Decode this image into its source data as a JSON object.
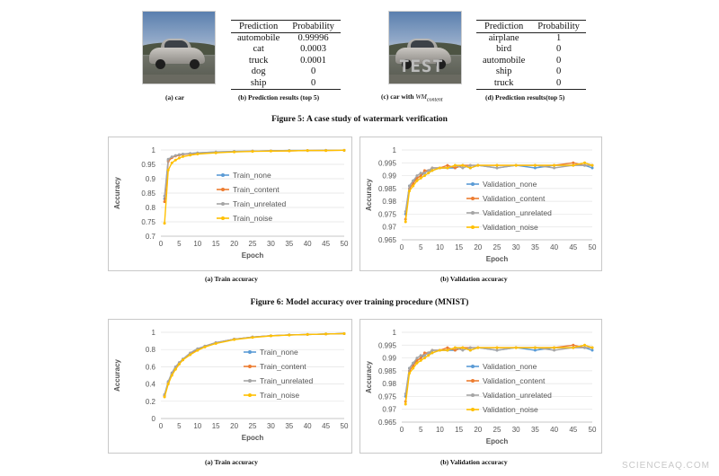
{
  "figure5": {
    "caption": "Figure 5: A case study of watermark verification",
    "sub_a": "(a) car",
    "sub_b": "(b) Prediction results (top 5)",
    "sub_c_prefix": "(c) car with ",
    "sub_c_math": "WM",
    "sub_c_sub": "content",
    "sub_d": "(d) Prediction results(top 5)",
    "watermark_text": "TEST",
    "table_headers": [
      "Prediction",
      "Probability"
    ],
    "table_b": [
      [
        "automobile",
        "0.99996"
      ],
      [
        "cat",
        "0.0003"
      ],
      [
        "truck",
        "0.0001"
      ],
      [
        "dog",
        "0"
      ],
      [
        "ship",
        "0"
      ]
    ],
    "table_d": [
      [
        "airplane",
        "1"
      ],
      [
        "bird",
        "0"
      ],
      [
        "automobile",
        "0"
      ],
      [
        "ship",
        "0"
      ],
      [
        "truck",
        "0"
      ]
    ]
  },
  "figure6": {
    "caption": "Figure 6: Model accuracy over training procedure (MNIST)",
    "sub_a": "(a) Train accuracy",
    "sub_b": "(b) Validation accuracy"
  },
  "figure7": {
    "sub_a": "(a) Train accuracy",
    "sub_b": "(b) Validation accuracy"
  },
  "site_watermark": "SCIENCEAQ.COM",
  "colors": {
    "none": "#5b9bd5",
    "content": "#ed7d31",
    "unrelated": "#a5a5a5",
    "noise": "#ffc000"
  },
  "chart_data": [
    {
      "id": "c1",
      "type": "line",
      "title": "",
      "xlabel": "Epoch",
      "ylabel": "Accuracy",
      "xlim": [
        0,
        50
      ],
      "ylim": [
        0.7,
        1
      ],
      "xticks": [
        0,
        5,
        10,
        15,
        20,
        25,
        30,
        35,
        40,
        45,
        50
      ],
      "yticks": [
        0.7,
        0.75,
        0.8,
        0.85,
        0.9,
        0.95,
        1
      ],
      "ytick_labels": [
        "0.7",
        "0.75",
        "0.8",
        "0.85",
        "0.9",
        "0.95",
        "1"
      ],
      "legend_position": "center",
      "series": [
        {
          "name": "Train_none",
          "key": "none",
          "x": [
            1,
            2,
            3,
            4,
            5,
            6,
            8,
            10,
            15,
            20,
            25,
            30,
            35,
            40,
            45,
            50
          ],
          "values": [
            0.83,
            0.965,
            0.975,
            0.98,
            0.983,
            0.985,
            0.988,
            0.99,
            0.993,
            0.995,
            0.996,
            0.997,
            0.998,
            0.998,
            0.999,
            0.999
          ]
        },
        {
          "name": "Train_content",
          "key": "content",
          "x": [
            1,
            2,
            3,
            4,
            5,
            6,
            8,
            10,
            15,
            20,
            25,
            30,
            35,
            40,
            45,
            50
          ],
          "values": [
            0.82,
            0.96,
            0.973,
            0.979,
            0.982,
            0.984,
            0.987,
            0.989,
            0.992,
            0.994,
            0.996,
            0.997,
            0.997,
            0.998,
            0.998,
            0.999
          ]
        },
        {
          "name": "Train_unrelated",
          "key": "unrelated",
          "x": [
            1,
            2,
            3,
            4,
            5,
            6,
            8,
            10,
            15,
            20,
            25,
            30,
            35,
            40,
            45,
            50
          ],
          "values": [
            0.84,
            0.968,
            0.976,
            0.981,
            0.984,
            0.986,
            0.988,
            0.99,
            0.993,
            0.995,
            0.996,
            0.997,
            0.998,
            0.998,
            0.999,
            0.999
          ]
        },
        {
          "name": "Train_noise",
          "key": "noise",
          "x": [
            1,
            2,
            3,
            4,
            5,
            6,
            8,
            10,
            15,
            20,
            25,
            30,
            35,
            40,
            45,
            50
          ],
          "values": [
            0.745,
            0.93,
            0.955,
            0.965,
            0.972,
            0.977,
            0.982,
            0.986,
            0.99,
            0.993,
            0.995,
            0.996,
            0.997,
            0.998,
            0.998,
            0.999
          ]
        }
      ]
    },
    {
      "id": "c2",
      "type": "line",
      "title": "",
      "xlabel": "Epoch",
      "ylabel": "Accuracy",
      "xlim": [
        0,
        50
      ],
      "ylim": [
        0.965,
        1
      ],
      "xticks": [
        0,
        5,
        10,
        15,
        20,
        25,
        30,
        35,
        40,
        45,
        50
      ],
      "yticks": [
        0.965,
        0.97,
        0.975,
        0.98,
        0.985,
        0.99,
        0.995,
        1
      ],
      "ytick_labels": [
        "0.965",
        "0.97",
        "0.975",
        "0.98",
        "0.985",
        "0.99",
        "0.995",
        "1"
      ],
      "legend_position": "center",
      "series": [
        {
          "name": "Validation_none",
          "key": "none",
          "x": [
            1,
            2,
            3,
            4,
            5,
            6,
            7,
            8,
            10,
            12,
            14,
            16,
            18,
            20,
            25,
            30,
            35,
            40,
            45,
            48,
            50
          ],
          "values": [
            0.975,
            0.986,
            0.988,
            0.989,
            0.99,
            0.991,
            0.992,
            0.992,
            0.993,
            0.993,
            0.993,
            0.994,
            0.993,
            0.994,
            0.993,
            0.994,
            0.993,
            0.994,
            0.994,
            0.994,
            0.993
          ]
        },
        {
          "name": "Validation_content",
          "key": "content",
          "x": [
            1,
            2,
            3,
            4,
            5,
            6,
            7,
            8,
            10,
            12,
            14,
            16,
            18,
            20,
            25,
            30,
            35,
            40,
            45,
            48,
            50
          ],
          "values": [
            0.973,
            0.985,
            0.987,
            0.989,
            0.99,
            0.992,
            0.992,
            0.993,
            0.993,
            0.994,
            0.993,
            0.994,
            0.994,
            0.994,
            0.994,
            0.994,
            0.994,
            0.994,
            0.995,
            0.994,
            0.994
          ]
        },
        {
          "name": "Validation_unrelated",
          "key": "unrelated",
          "x": [
            1,
            2,
            3,
            4,
            5,
            6,
            7,
            8,
            10,
            12,
            14,
            16,
            18,
            20,
            25,
            30,
            35,
            40,
            45,
            48,
            50
          ],
          "values": [
            0.976,
            0.986,
            0.988,
            0.99,
            0.991,
            0.991,
            0.992,
            0.993,
            0.993,
            0.993,
            0.994,
            0.993,
            0.994,
            0.994,
            0.993,
            0.994,
            0.994,
            0.993,
            0.994,
            0.994,
            0.994
          ]
        },
        {
          "name": "Validation_noise",
          "key": "noise",
          "x": [
            1,
            2,
            3,
            4,
            5,
            6,
            7,
            8,
            10,
            12,
            14,
            16,
            18,
            20,
            25,
            30,
            35,
            40,
            45,
            48,
            50
          ],
          "values": [
            0.972,
            0.984,
            0.986,
            0.988,
            0.989,
            0.99,
            0.991,
            0.992,
            0.993,
            0.993,
            0.994,
            0.994,
            0.993,
            0.994,
            0.994,
            0.994,
            0.994,
            0.994,
            0.994,
            0.995,
            0.994
          ]
        }
      ]
    },
    {
      "id": "c3",
      "type": "line",
      "title": "",
      "xlabel": "Epoch",
      "ylabel": "Accuracy",
      "xlim": [
        0,
        50
      ],
      "ylim": [
        0,
        1
      ],
      "xticks": [
        0,
        5,
        10,
        15,
        20,
        25,
        30,
        35,
        40,
        45,
        50
      ],
      "yticks": [
        0,
        0.2,
        0.4,
        0.6,
        0.8,
        1
      ],
      "ytick_labels": [
        "0",
        "0.2",
        "0.4",
        "0.6",
        "0.8",
        "1"
      ],
      "legend_position": "center-right",
      "series": [
        {
          "name": "Train_none",
          "key": "none",
          "x": [
            1,
            2,
            3,
            4,
            5,
            6,
            8,
            10,
            12,
            15,
            20,
            25,
            30,
            35,
            40,
            45,
            50
          ],
          "values": [
            0.27,
            0.42,
            0.52,
            0.59,
            0.64,
            0.69,
            0.75,
            0.8,
            0.84,
            0.88,
            0.92,
            0.945,
            0.96,
            0.97,
            0.975,
            0.98,
            0.985
          ]
        },
        {
          "name": "Train_content",
          "key": "content",
          "x": [
            1,
            2,
            3,
            4,
            5,
            6,
            8,
            10,
            12,
            15,
            20,
            25,
            30,
            35,
            40,
            45,
            50
          ],
          "values": [
            0.26,
            0.41,
            0.51,
            0.58,
            0.64,
            0.68,
            0.75,
            0.8,
            0.84,
            0.88,
            0.92,
            0.945,
            0.96,
            0.97,
            0.975,
            0.98,
            0.985
          ]
        },
        {
          "name": "Train_unrelated",
          "key": "unrelated",
          "x": [
            1,
            2,
            3,
            4,
            5,
            6,
            8,
            10,
            12,
            15,
            20,
            25,
            30,
            35,
            40,
            45,
            50
          ],
          "values": [
            0.28,
            0.43,
            0.53,
            0.6,
            0.65,
            0.69,
            0.76,
            0.81,
            0.84,
            0.88,
            0.92,
            0.945,
            0.96,
            0.97,
            0.975,
            0.98,
            0.985
          ]
        },
        {
          "name": "Train_noise",
          "key": "noise",
          "x": [
            1,
            2,
            3,
            4,
            5,
            6,
            8,
            10,
            12,
            15,
            20,
            25,
            30,
            35,
            40,
            45,
            50
          ],
          "values": [
            0.25,
            0.4,
            0.5,
            0.57,
            0.63,
            0.68,
            0.74,
            0.79,
            0.83,
            0.87,
            0.915,
            0.94,
            0.958,
            0.968,
            0.975,
            0.98,
            0.985
          ]
        }
      ]
    },
    {
      "id": "c4",
      "type": "line",
      "title": "",
      "xlabel": "Epoch",
      "ylabel": "Accuracy",
      "xlim": [
        0,
        50
      ],
      "ylim": [
        0.965,
        1
      ],
      "xticks": [
        0,
        5,
        10,
        15,
        20,
        25,
        30,
        35,
        40,
        45,
        50
      ],
      "yticks": [
        0.965,
        0.97,
        0.975,
        0.98,
        0.985,
        0.99,
        0.995,
        1
      ],
      "ytick_labels": [
        "0.965",
        "0.97",
        "0.975",
        "0.98",
        "0.985",
        "0.99",
        "0.995",
        "1"
      ],
      "legend_position": "center",
      "series": [
        {
          "name": "Validation_none",
          "key": "none",
          "x": [
            1,
            2,
            3,
            4,
            5,
            6,
            7,
            8,
            10,
            12,
            14,
            16,
            18,
            20,
            25,
            30,
            35,
            40,
            45,
            48,
            50
          ],
          "values": [
            0.975,
            0.986,
            0.988,
            0.989,
            0.99,
            0.991,
            0.992,
            0.992,
            0.993,
            0.993,
            0.993,
            0.994,
            0.993,
            0.994,
            0.993,
            0.994,
            0.993,
            0.994,
            0.994,
            0.994,
            0.993
          ]
        },
        {
          "name": "Validation_content",
          "key": "content",
          "x": [
            1,
            2,
            3,
            4,
            5,
            6,
            7,
            8,
            10,
            12,
            14,
            16,
            18,
            20,
            25,
            30,
            35,
            40,
            45,
            48,
            50
          ],
          "values": [
            0.973,
            0.985,
            0.987,
            0.989,
            0.99,
            0.992,
            0.992,
            0.993,
            0.993,
            0.994,
            0.993,
            0.994,
            0.994,
            0.994,
            0.994,
            0.994,
            0.994,
            0.994,
            0.995,
            0.994,
            0.994
          ]
        },
        {
          "name": "Validation_unrelated",
          "key": "unrelated",
          "x": [
            1,
            2,
            3,
            4,
            5,
            6,
            7,
            8,
            10,
            12,
            14,
            16,
            18,
            20,
            25,
            30,
            35,
            40,
            45,
            48,
            50
          ],
          "values": [
            0.976,
            0.986,
            0.988,
            0.99,
            0.991,
            0.991,
            0.992,
            0.993,
            0.993,
            0.993,
            0.994,
            0.993,
            0.994,
            0.994,
            0.993,
            0.994,
            0.994,
            0.993,
            0.994,
            0.994,
            0.994
          ]
        },
        {
          "name": "Validation_noise",
          "key": "noise",
          "x": [
            1,
            2,
            3,
            4,
            5,
            6,
            7,
            8,
            10,
            12,
            14,
            16,
            18,
            20,
            25,
            30,
            35,
            40,
            45,
            48,
            50
          ],
          "values": [
            0.972,
            0.984,
            0.986,
            0.988,
            0.989,
            0.99,
            0.991,
            0.992,
            0.993,
            0.993,
            0.994,
            0.994,
            0.993,
            0.994,
            0.994,
            0.994,
            0.994,
            0.994,
            0.994,
            0.995,
            0.994
          ]
        }
      ]
    }
  ]
}
